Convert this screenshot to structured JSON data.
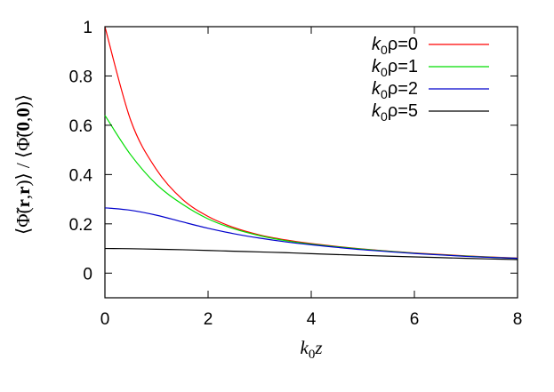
{
  "chart_data": {
    "type": "line",
    "xlabel": "k0z",
    "ylabel": "⟨Φ̃(r,r)⟩ / ⟨Φ̃(0,0)⟩",
    "xlim": [
      0,
      8
    ],
    "ylim": [
      -0.1,
      1
    ],
    "xticks": [
      0,
      2,
      4,
      6,
      8
    ],
    "yticks": [
      0,
      0.2,
      0.4,
      0.6,
      0.8,
      1
    ],
    "xtick_labels": [
      "0",
      "2",
      "4",
      "6",
      "8"
    ],
    "ytick_labels": [
      "0",
      "0.2",
      "0.4",
      "0.6",
      "0.8",
      "1"
    ],
    "grid": false,
    "legend_position": "top-right",
    "x": [
      0,
      0.5,
      1,
      1.5,
      2,
      2.5,
      3,
      3.5,
      4,
      5,
      6,
      7,
      8
    ],
    "series": [
      {
        "name": "k0ρ=0",
        "legend_var": "k",
        "legend_sub": "0",
        "legend_rest": "ρ=0",
        "color": "#ff0000",
        "values": [
          1.0,
          0.62,
          0.42,
          0.3,
          0.23,
          0.185,
          0.155,
          0.135,
          0.12,
          0.098,
          0.082,
          0.07,
          0.061
        ]
      },
      {
        "name": "k0ρ=1",
        "legend_var": "k",
        "legend_sub": "0",
        "legend_rest": "ρ=1",
        "color": "#00dd00",
        "values": [
          0.64,
          0.48,
          0.36,
          0.28,
          0.22,
          0.18,
          0.152,
          0.132,
          0.118,
          0.097,
          0.081,
          0.069,
          0.06
        ]
      },
      {
        "name": "k0ρ=2",
        "legend_var": "k",
        "legend_sub": "0",
        "legend_rest": "ρ=2",
        "color": "#0000cc",
        "values": [
          0.265,
          0.255,
          0.235,
          0.208,
          0.182,
          0.16,
          0.142,
          0.127,
          0.115,
          0.095,
          0.08,
          0.068,
          0.06
        ]
      },
      {
        "name": "k0ρ=5",
        "legend_var": "k",
        "legend_sub": "0",
        "legend_rest": "ρ=5",
        "color": "#000000",
        "values": [
          0.1,
          0.099,
          0.097,
          0.095,
          0.092,
          0.089,
          0.086,
          0.083,
          0.079,
          0.072,
          0.066,
          0.06,
          0.055
        ]
      }
    ]
  }
}
